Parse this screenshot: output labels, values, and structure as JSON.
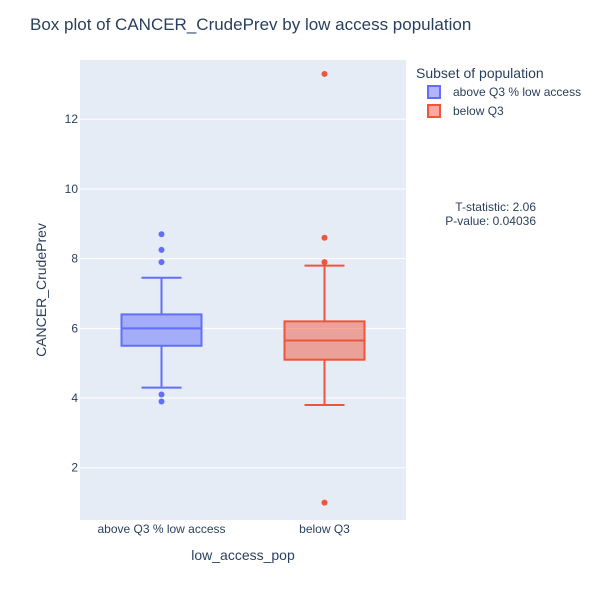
{
  "chart_data": {
    "type": "box",
    "title": "Box plot of CANCER_CrudePrev by low access population",
    "xlabel": "low_access_pop",
    "ylabel": "CANCER_CrudePrev",
    "ylim": [
      0.5,
      13.7
    ],
    "yticks": [
      2,
      4,
      6,
      8,
      10,
      12
    ],
    "categories": [
      "above Q3 % low access",
      "below Q3"
    ],
    "legend": {
      "title": "Subset of population",
      "placement": "top-right",
      "entries": [
        "above Q3 % low access",
        "below Q3"
      ]
    },
    "annotation": {
      "line1": "T-statistic: 2.06",
      "line2": "P-value: 0.04036"
    },
    "series": [
      {
        "category": "above Q3 % low access",
        "color": "#636efa",
        "fill": "rgba(99,110,250,0.5)",
        "lowerfence": 4.3,
        "q1": 5.5,
        "median": 6.0,
        "q3": 6.4,
        "upperfence": 7.45,
        "outliers": [
          8.7,
          8.25,
          7.9,
          4.1,
          3.9
        ]
      },
      {
        "category": "below Q3",
        "color": "#ef553b",
        "fill": "rgba(239,85,59,0.5)",
        "lowerfence": 3.8,
        "q1": 5.1,
        "median": 5.65,
        "q3": 6.2,
        "upperfence": 7.8,
        "outliers": [
          13.3,
          8.6,
          7.9,
          1.0
        ]
      }
    ]
  }
}
